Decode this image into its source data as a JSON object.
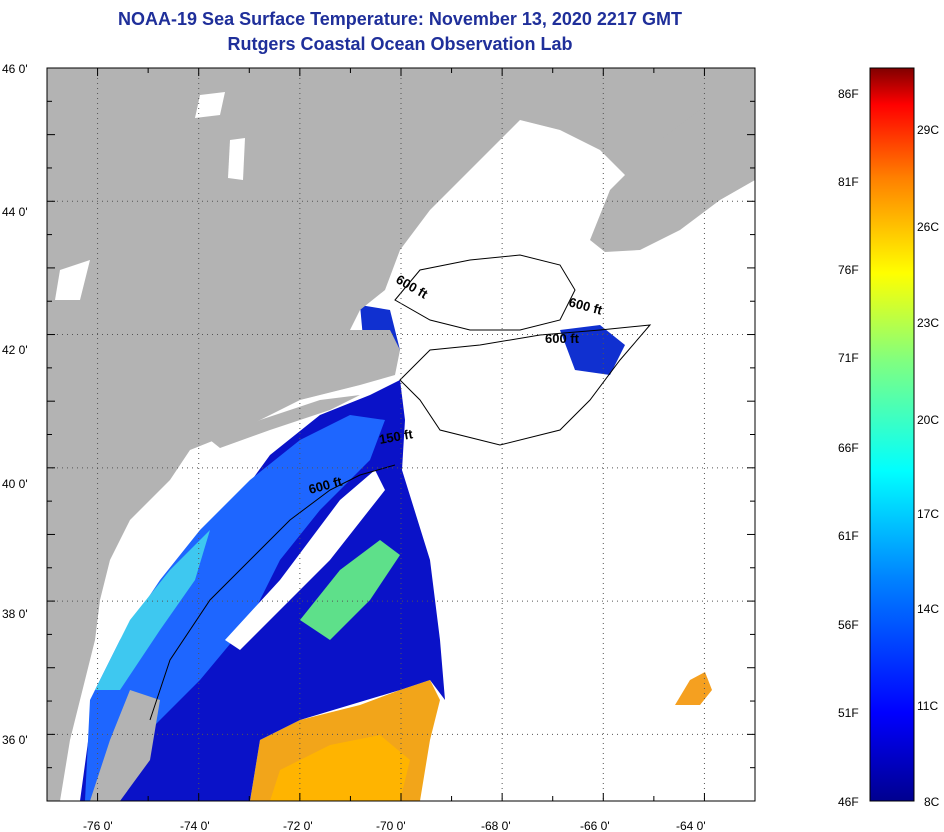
{
  "title": "NOAA-19 Sea Surface Temperature:  November 13, 2020 2217 GMT",
  "subtitle": "Rutgers Coastal Ocean Observation Lab",
  "colors": {
    "land": "#b3b3b3",
    "cloud": "#ffffff",
    "title": "#1f2f9a"
  },
  "map": {
    "lon_range": [
      -77,
      -63
    ],
    "lat_range": [
      35,
      46
    ],
    "lat_labels": [
      "46 0'",
      "44 0'",
      "42 0'",
      "40 0'",
      "38 0'",
      "36 0'"
    ],
    "lon_labels": [
      "-76 0'",
      "-74 0'",
      "-72 0'",
      "-70 0'",
      "-68 0'",
      "-66 0'",
      "-64 0'"
    ],
    "grid": "dotted",
    "contour_labels": [
      "600 ft",
      "600 ft",
      "600 ft",
      "150 ft",
      "600 ft"
    ]
  },
  "colorbar": {
    "fahrenheit": [
      "86F",
      "81F",
      "76F",
      "71F",
      "66F",
      "61F",
      "56F",
      "51F",
      "46F"
    ],
    "celsius": [
      "29C",
      "26C",
      "23C",
      "20C",
      "17C",
      "14C",
      "11C",
      "8C"
    ],
    "range_c": [
      8,
      30
    ]
  }
}
